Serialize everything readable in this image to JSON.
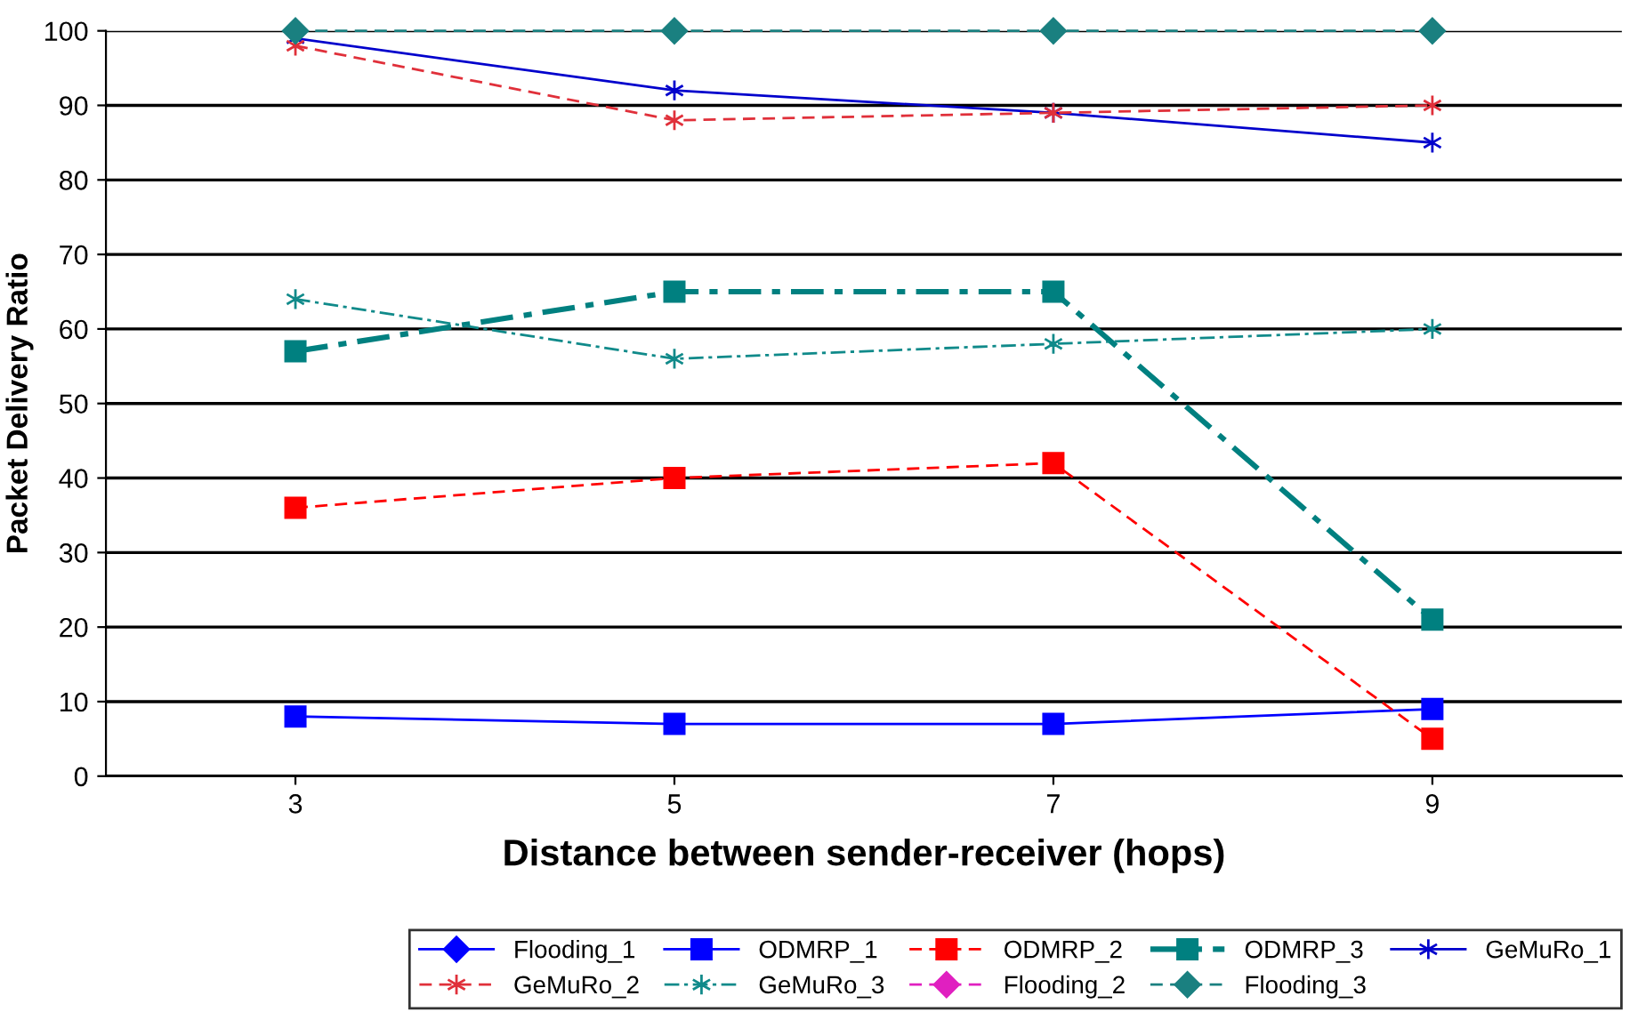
{
  "chart_data": {
    "type": "line",
    "xlabel": "Distance between sender-receiver (hops)",
    "ylabel": "Packet Delivery Ratio",
    "categories": [
      "3",
      "5",
      "7",
      "9"
    ],
    "series": [
      {
        "name": "Flooding_1",
        "color": "#0000ff",
        "marker": "diamond",
        "line_style": "solid",
        "values": [
          null,
          null,
          null,
          null
        ]
      },
      {
        "name": "ODMRP_1",
        "color": "#0000ff",
        "marker": "square",
        "line_style": "solid",
        "values": [
          8,
          7,
          7,
          9
        ]
      },
      {
        "name": "ODMRP_2",
        "color": "#ff0000",
        "marker": "square",
        "line_style": "dashed",
        "values": [
          36,
          40,
          42,
          5
        ]
      },
      {
        "name": "ODMRP_3",
        "color": "#008080",
        "marker": "square",
        "line_style": "dashdot",
        "values": [
          57,
          65,
          65,
          21
        ]
      },
      {
        "name": "GeMuRo_1",
        "color": "#0000cc",
        "marker": "cross",
        "line_style": "solid",
        "values": [
          99,
          92,
          89,
          85
        ]
      },
      {
        "name": "GeMuRo_2",
        "color": "#e0303a",
        "marker": "cross",
        "line_style": "dashed",
        "values": [
          98,
          88,
          89,
          90
        ]
      },
      {
        "name": "GeMuRo_3",
        "color": "#108a8a",
        "marker": "cross",
        "line_style": "dashdot",
        "values": [
          64,
          56,
          58,
          60
        ]
      },
      {
        "name": "Flooding_2",
        "color": "#e020c0",
        "marker": "diamond",
        "line_style": "dashed",
        "values": [
          null,
          null,
          null,
          null
        ]
      },
      {
        "name": "Flooding_3",
        "color": "#1a8080",
        "marker": "diamond",
        "line_style": "dashed",
        "values": [
          100,
          100,
          100,
          100
        ]
      }
    ],
    "ylim": [
      0,
      100
    ],
    "yticks": [
      0,
      10,
      20,
      30,
      40,
      50,
      60,
      70,
      80,
      90,
      100
    ],
    "grid": "y",
    "legend": "bottom"
  }
}
